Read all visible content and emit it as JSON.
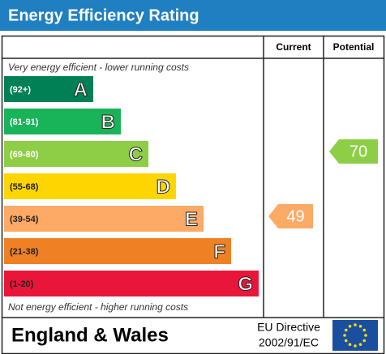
{
  "header": {
    "title": "Energy Efficiency Rating"
  },
  "columns": [
    "Current",
    "Potential"
  ],
  "top_note": "Very energy efficient - lower running costs",
  "bottom_note": "Not energy efficient - higher running costs",
  "bands": [
    {
      "range": "(92+)",
      "letter": "A",
      "color": "#008054"
    },
    {
      "range": "(81-91)",
      "letter": "B",
      "color": "#19b459"
    },
    {
      "range": "(69-80)",
      "letter": "C",
      "color": "#8dce46"
    },
    {
      "range": "(55-68)",
      "letter": "D",
      "color": "#ffd500"
    },
    {
      "range": "(39-54)",
      "letter": "E",
      "color": "#fcaa65"
    },
    {
      "range": "(21-38)",
      "letter": "F",
      "color": "#ef8023"
    },
    {
      "range": "(1-20)",
      "letter": "G",
      "color": "#e9153b"
    }
  ],
  "current": 49,
  "potential": 70,
  "footer": {
    "region": "England & Wales",
    "directive": [
      "EU Directive",
      "2002/91/EC"
    ]
  }
}
